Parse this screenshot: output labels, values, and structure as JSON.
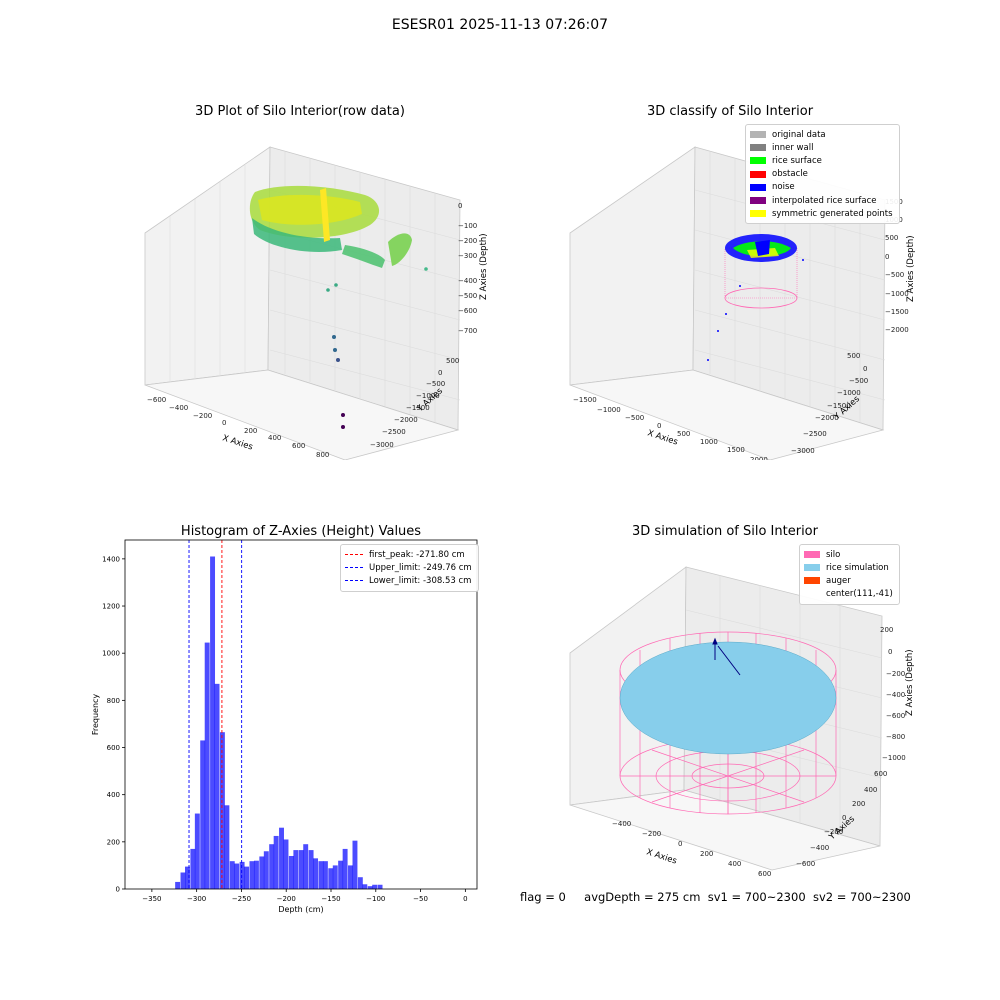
{
  "suptitle": "ESESR01 2025-11-13 07:26:07",
  "status": {
    "flag": "flag = 0",
    "avg_depth": "avgDepth = 275 cm",
    "sv1": "sv1 = 700~2300",
    "sv2": "sv2 = 700~2300"
  },
  "panels": {
    "raw": {
      "title": "3D Plot of Silo Interior(row data)",
      "xlabel": "X Axies",
      "ylabel": "Y Axies",
      "zlabel": "Z Axies (Depth)",
      "x_ticks": [
        "−600",
        "−400",
        "−200",
        "0",
        "200",
        "400",
        "600",
        "800"
      ],
      "y_ticks": [
        "500",
        "0",
        "−500",
        "−1000",
        "−1500",
        "−2000",
        "−2500",
        "−3000"
      ],
      "z_ticks": [
        "0",
        "−100",
        "−200",
        "−300",
        "−400",
        "−500",
        "−600",
        "−700"
      ]
    },
    "classify": {
      "title": "3D classify of Silo Interior",
      "xlabel": "X Axies",
      "ylabel": "Y Axies",
      "zlabel": "Z Axies (Depth)",
      "x_ticks": [
        "−1500",
        "−1000",
        "−500",
        "0",
        "500",
        "1000",
        "1500",
        "2000"
      ],
      "y_ticks": [
        "500",
        "0",
        "−500",
        "−1000",
        "−1500",
        "−2000",
        "−2500",
        "−3000"
      ],
      "z_ticks": [
        "1500",
        "1000",
        "500",
        "0",
        "−500",
        "−1000",
        "−1500",
        "−2000"
      ],
      "legend": [
        {
          "label": "original data",
          "color": "#b3b3b3"
        },
        {
          "label": "inner wall",
          "color": "#808080"
        },
        {
          "label": "rice surface",
          "color": "#00ff00"
        },
        {
          "label": "obstacle",
          "color": "#ff0000"
        },
        {
          "label": "noise",
          "color": "#0000ff"
        },
        {
          "label": "interpolated rice surface",
          "color": "#800080"
        },
        {
          "label": "symmetric generated points",
          "color": "#ffff00"
        }
      ]
    },
    "simulation": {
      "title": "3D simulation of Silo Interior",
      "xlabel": "X Axies",
      "ylabel": "Y Axies",
      "zlabel": "Z Axies (Depth)",
      "x_ticks": [
        "−400",
        "−200",
        "0",
        "200",
        "400",
        "600"
      ],
      "y_ticks": [
        "600",
        "400",
        "200",
        "0",
        "−200",
        "−400",
        "−600"
      ],
      "z_ticks": [
        "200",
        "0",
        "−200",
        "−400",
        "−600",
        "−800",
        "−1000"
      ],
      "legend": [
        {
          "label": "silo",
          "color": "#ff69b4"
        },
        {
          "label": "rice simulation",
          "color": "#87ceeb"
        },
        {
          "label": "auger",
          "color": "#ff4500"
        },
        {
          "label": "center(111,-41)",
          "color": ""
        }
      ]
    }
  },
  "chart_data": {
    "type": "bar",
    "title": "Histogram of Z-Axies (Height) Values",
    "xlabel": "Depth (cm)",
    "ylabel": "Frequency",
    "xlim": [
      -380,
      13
    ],
    "ylim": [
      0,
      1480
    ],
    "x_ticks": [
      -350,
      -300,
      -250,
      -200,
      -150,
      -100,
      -50,
      0
    ],
    "y_ticks": [
      0,
      200,
      400,
      600,
      800,
      1000,
      1200,
      1400
    ],
    "bar_color": "#0000ff",
    "bar_width": 5.5,
    "bins": [
      {
        "x": -324,
        "v": 30
      },
      {
        "x": -318,
        "v": 70
      },
      {
        "x": -313,
        "v": 95
      },
      {
        "x": -307,
        "v": 170
      },
      {
        "x": -302,
        "v": 320
      },
      {
        "x": -296,
        "v": 630
      },
      {
        "x": -291,
        "v": 1045
      },
      {
        "x": -285,
        "v": 1410
      },
      {
        "x": -280,
        "v": 870
      },
      {
        "x": -274,
        "v": 665
      },
      {
        "x": -269,
        "v": 355
      },
      {
        "x": -263,
        "v": 118
      },
      {
        "x": -258,
        "v": 108
      },
      {
        "x": -252,
        "v": 115
      },
      {
        "x": -247,
        "v": 95
      },
      {
        "x": -241,
        "v": 118
      },
      {
        "x": -236,
        "v": 120
      },
      {
        "x": -230,
        "v": 138
      },
      {
        "x": -225,
        "v": 160
      },
      {
        "x": -219,
        "v": 190
      },
      {
        "x": -214,
        "v": 225
      },
      {
        "x": -208,
        "v": 260
      },
      {
        "x": -203,
        "v": 210
      },
      {
        "x": -197,
        "v": 140
      },
      {
        "x": -192,
        "v": 165
      },
      {
        "x": -186,
        "v": 165
      },
      {
        "x": -181,
        "v": 190
      },
      {
        "x": -175,
        "v": 165
      },
      {
        "x": -170,
        "v": 130
      },
      {
        "x": -164,
        "v": 118
      },
      {
        "x": -159,
        "v": 118
      },
      {
        "x": -153,
        "v": 88
      },
      {
        "x": -148,
        "v": 100
      },
      {
        "x": -142,
        "v": 120
      },
      {
        "x": -137,
        "v": 170
      },
      {
        "x": -131,
        "v": 100
      },
      {
        "x": -126,
        "v": 205
      },
      {
        "x": -120,
        "v": 50
      },
      {
        "x": -115,
        "v": 20
      },
      {
        "x": -109,
        "v": 12
      },
      {
        "x": -104,
        "v": 18
      },
      {
        "x": -98,
        "v": 18
      }
    ],
    "vlines": [
      {
        "label": "first_peak: -271.80 cm",
        "x": -271.8,
        "color": "#ff0000"
      },
      {
        "label": "Upper_limit: -249.76 cm",
        "x": -249.76,
        "color": "#0000ff"
      },
      {
        "label": "Lower_limit: -308.53 cm",
        "x": -308.53,
        "color": "#0000ff"
      }
    ]
  }
}
